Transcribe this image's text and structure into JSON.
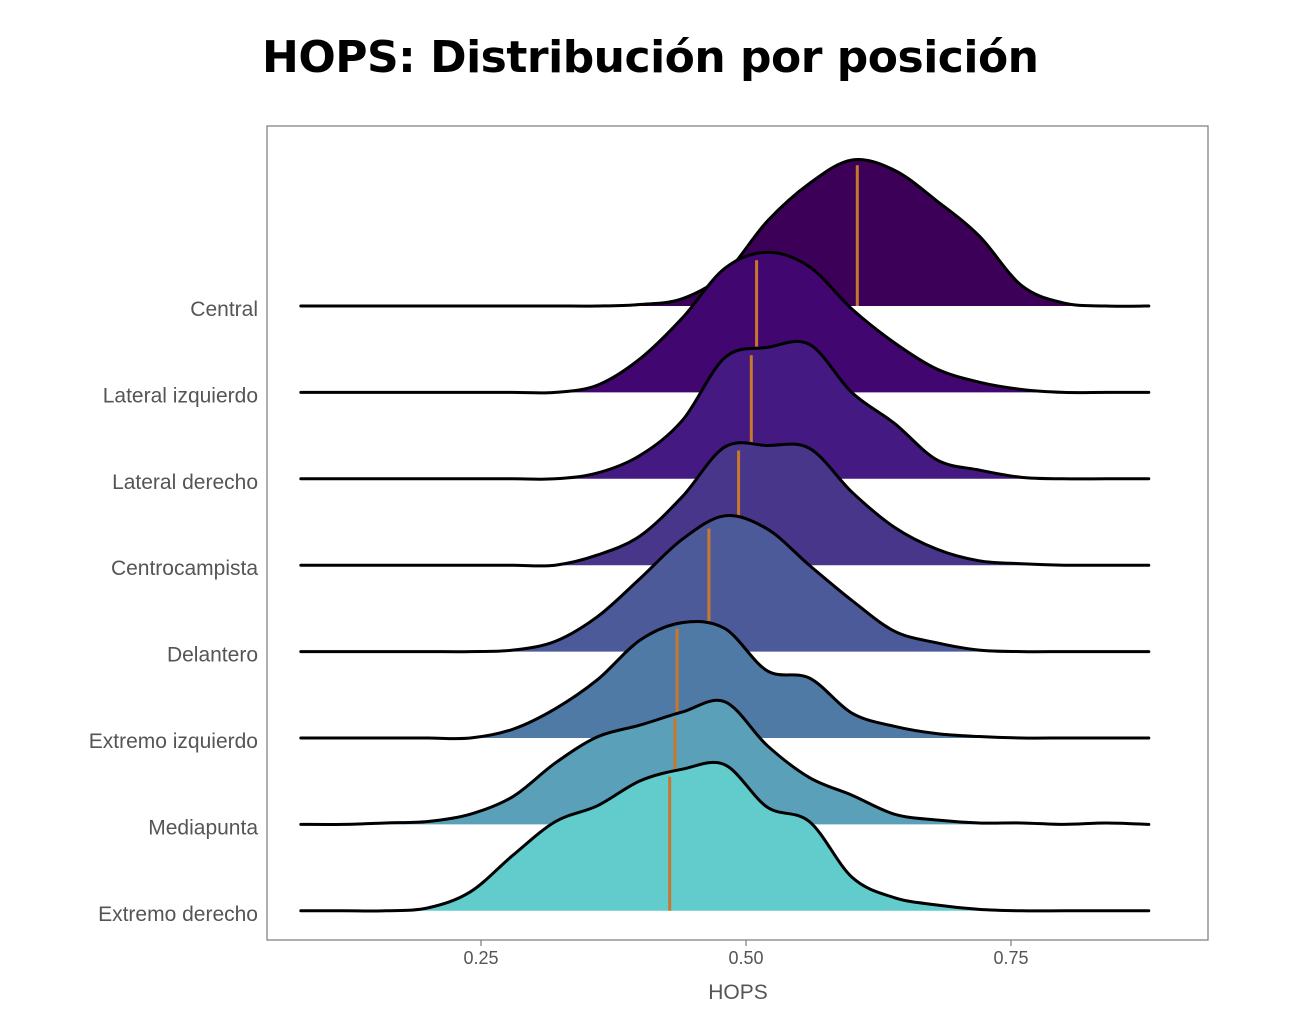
{
  "chart_data": {
    "type": "ridgeline",
    "title": "HOPS: Distribución por posición",
    "xlabel": "HOPS",
    "ylabel": "",
    "xlim": [
      0.06,
      0.94
    ],
    "x_ticks": [
      0.25,
      0.5,
      0.75
    ],
    "x_tick_labels": [
      "0.25",
      "0.50",
      "0.75"
    ],
    "grid": false,
    "x_grid": [
      0.08,
      0.12,
      0.16,
      0.2,
      0.24,
      0.28,
      0.32,
      0.36,
      0.4,
      0.44,
      0.48,
      0.52,
      0.56,
      0.6,
      0.64,
      0.68,
      0.72,
      0.76,
      0.8,
      0.84,
      0.88
    ],
    "median_color": "#c8782d",
    "series": [
      {
        "name": "Central",
        "color": "#3d0059",
        "median": 0.605,
        "density": [
          0,
          0,
          0,
          0,
          0,
          0,
          0,
          0,
          0.01,
          0.05,
          0.22,
          0.58,
          0.84,
          1.0,
          0.93,
          0.72,
          0.48,
          0.14,
          0.02,
          0,
          0
        ]
      },
      {
        "name": "Lateral izquierdo",
        "color": "#410670",
        "median": 0.51,
        "density": [
          0,
          0,
          0,
          0,
          0,
          0,
          0,
          0.05,
          0.23,
          0.51,
          0.85,
          0.96,
          0.86,
          0.57,
          0.34,
          0.16,
          0.07,
          0.02,
          0,
          0,
          0
        ]
      },
      {
        "name": "Lateral derecho",
        "color": "#441a82",
        "median": 0.505,
        "density": [
          0,
          0,
          0,
          0,
          0,
          0,
          0,
          0.04,
          0.16,
          0.4,
          0.83,
          0.9,
          0.92,
          0.59,
          0.38,
          0.13,
          0.06,
          0.01,
          0,
          0,
          0
        ]
      },
      {
        "name": "Centrocampista",
        "color": "#48368a",
        "median": 0.493,
        "density": [
          0,
          0,
          0,
          0,
          0,
          0,
          0,
          0.07,
          0.2,
          0.47,
          0.81,
          0.82,
          0.8,
          0.5,
          0.26,
          0.11,
          0.03,
          0.01,
          0,
          0,
          0
        ]
      },
      {
        "name": "Delantero",
        "color": "#4d5a9a",
        "median": 0.465,
        "density": [
          0,
          0,
          0,
          0,
          0,
          0.01,
          0.07,
          0.24,
          0.5,
          0.77,
          0.93,
          0.84,
          0.59,
          0.35,
          0.14,
          0.06,
          0.01,
          0,
          0,
          0,
          0
        ]
      },
      {
        "name": "Extremo izquierdo",
        "color": "#4f7aa6",
        "median": 0.435,
        "density": [
          0,
          0,
          0,
          0,
          0,
          0.06,
          0.2,
          0.4,
          0.67,
          0.79,
          0.75,
          0.46,
          0.41,
          0.17,
          0.08,
          0.03,
          0.01,
          0,
          0,
          0,
          0
        ]
      },
      {
        "name": "Mediapunta",
        "color": "#5aa0b9",
        "median": 0.433,
        "density": [
          0,
          0,
          0.01,
          0.02,
          0.07,
          0.19,
          0.42,
          0.6,
          0.68,
          0.77,
          0.84,
          0.54,
          0.32,
          0.2,
          0.07,
          0.03,
          0.01,
          0.01,
          0,
          0.01,
          0
        ]
      },
      {
        "name": "Extremo derecho",
        "color": "#62cbcc",
        "median": 0.428,
        "density": [
          0,
          0,
          0,
          0.02,
          0.13,
          0.38,
          0.61,
          0.72,
          0.89,
          0.97,
          1.0,
          0.71,
          0.61,
          0.23,
          0.09,
          0.04,
          0.01,
          0,
          0,
          0,
          0
        ]
      }
    ]
  }
}
